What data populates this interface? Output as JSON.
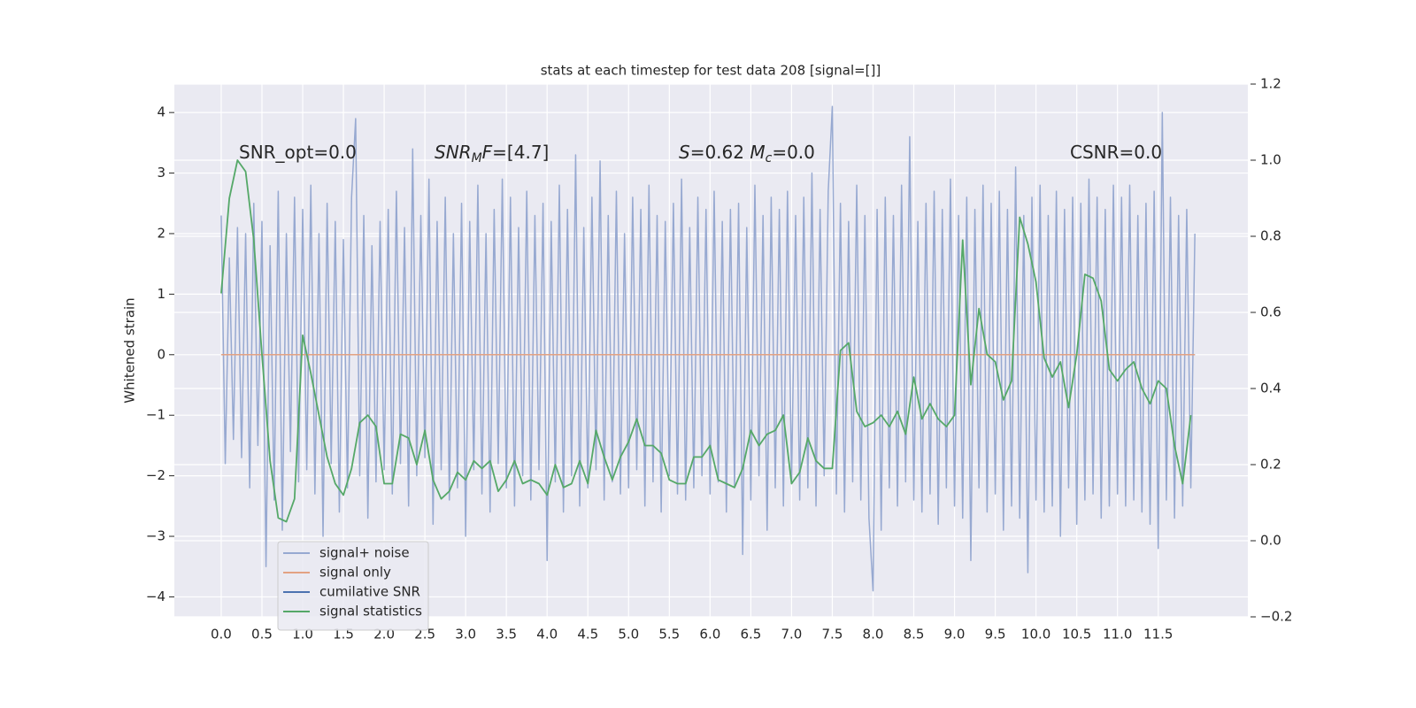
{
  "chart_data": {
    "type": "line",
    "title": "stats at each timestep for test data 208 [signal=[]]",
    "ylabel": "Whitened strain",
    "xlim": [
      -0.575,
      12.6
    ],
    "ylim": [
      -4.33,
      4.47
    ],
    "y2lim": [
      -0.2,
      1.2
    ],
    "xticks": [
      {
        "value": 0,
        "label": "0.0"
      },
      {
        "value": 0.5,
        "label": "0.5"
      },
      {
        "value": 1,
        "label": "1.0"
      },
      {
        "value": 1.5,
        "label": "1.5"
      },
      {
        "value": 2,
        "label": "2.0"
      },
      {
        "value": 2.5,
        "label": "2.5"
      },
      {
        "value": 3,
        "label": "3.0"
      },
      {
        "value": 3.5,
        "label": "3.5"
      },
      {
        "value": 4,
        "label": "4.0"
      },
      {
        "value": 4.5,
        "label": "4.5"
      },
      {
        "value": 5,
        "label": "5.0"
      },
      {
        "value": 5.5,
        "label": "5.5"
      },
      {
        "value": 6,
        "label": "6.0"
      },
      {
        "value": 6.5,
        "label": "6.5"
      },
      {
        "value": 7,
        "label": "7.0"
      },
      {
        "value": 7.5,
        "label": "7.5"
      },
      {
        "value": 8,
        "label": "8.0"
      },
      {
        "value": 8.5,
        "label": "8.5"
      },
      {
        "value": 9,
        "label": "9.0"
      },
      {
        "value": 9.5,
        "label": "9.5"
      },
      {
        "value": 10,
        "label": "10.0"
      },
      {
        "value": 10.5,
        "label": "10.5"
      },
      {
        "value": 11,
        "label": "11.0"
      },
      {
        "value": 11.5,
        "label": "11.5"
      }
    ],
    "yticks": [
      {
        "value": -4,
        "label": "−4"
      },
      {
        "value": -3,
        "label": "−3"
      },
      {
        "value": -2,
        "label": "−2"
      },
      {
        "value": -1,
        "label": "−1"
      },
      0,
      1,
      2,
      3,
      4
    ],
    "y2ticks": [
      {
        "value": -0.2,
        "label": "−0.2"
      },
      {
        "value": 0,
        "label": "0.0"
      },
      {
        "value": 0.2,
        "label": "0.2"
      },
      {
        "value": 0.4,
        "label": "0.4"
      },
      {
        "value": 0.6,
        "label": "0.6"
      },
      {
        "value": 0.8,
        "label": "0.8"
      },
      {
        "value": 1,
        "label": "1.0"
      },
      {
        "value": 1.2,
        "label": "1.2"
      }
    ],
    "grid": true,
    "legend": "lower left",
    "annotations": [
      {
        "parts": [
          {
            "text": "SNR_opt=0.0"
          }
        ]
      },
      {
        "parts": [
          {
            "text": "SNR",
            "italic": true
          },
          {
            "text": "M",
            "italic": true,
            "sub": true
          },
          {
            "text": "F=[4.7]",
            "italic_first": true
          }
        ]
      },
      {
        "parts": [
          {
            "text": "S",
            "italic": true
          },
          {
            "text": "=0.62   "
          },
          {
            "text": "M",
            "italic": true
          },
          {
            "text": "c",
            "italic": true,
            "sub": true
          },
          {
            "text": "=0.0"
          }
        ]
      },
      {
        "parts": [
          {
            "text": "CSNR=0.0"
          }
        ]
      }
    ],
    "series": [
      {
        "name": "signal+ noise",
        "color": "#97a9d1",
        "x": [
          0,
          0.05,
          0.1,
          0.15,
          0.2,
          0.25,
          0.3,
          0.35,
          0.4,
          0.45,
          0.5,
          0.55,
          0.6,
          0.65,
          0.7,
          0.75,
          0.8,
          0.85,
          0.9,
          0.95,
          1,
          1.05,
          1.1,
          1.15,
          1.2,
          1.25,
          1.3,
          1.35,
          1.4,
          1.45,
          1.5,
          1.55,
          1.6,
          1.65,
          1.7,
          1.75,
          1.8,
          1.85,
          1.9,
          1.95,
          2,
          2.05,
          2.1,
          2.15,
          2.2,
          2.25,
          2.3,
          2.35,
          2.4,
          2.45,
          2.5,
          2.55,
          2.6,
          2.65,
          2.7,
          2.75,
          2.8,
          2.85,
          2.9,
          2.95,
          3,
          3.05,
          3.1,
          3.15,
          3.2,
          3.25,
          3.3,
          3.35,
          3.4,
          3.45,
          3.5,
          3.55,
          3.6,
          3.65,
          3.7,
          3.75,
          3.8,
          3.85,
          3.9,
          3.95,
          4,
          4.05,
          4.1,
          4.15,
          4.2,
          4.25,
          4.3,
          4.35,
          4.4,
          4.45,
          4.5,
          4.55,
          4.6,
          4.65,
          4.7,
          4.75,
          4.8,
          4.85,
          4.9,
          4.95,
          5,
          5.05,
          5.1,
          5.15,
          5.2,
          5.25,
          5.3,
          5.35,
          5.4,
          5.45,
          5.5,
          5.55,
          5.6,
          5.65,
          5.7,
          5.75,
          5.8,
          5.85,
          5.9,
          5.95,
          6,
          6.05,
          6.1,
          6.15,
          6.2,
          6.25,
          6.3,
          6.35,
          6.4,
          6.45,
          6.5,
          6.55,
          6.6,
          6.65,
          6.7,
          6.75,
          6.8,
          6.85,
          6.9,
          6.95,
          7,
          7.05,
          7.1,
          7.15,
          7.2,
          7.25,
          7.3,
          7.35,
          7.4,
          7.45,
          7.5,
          7.55,
          7.6,
          7.65,
          7.7,
          7.75,
          7.8,
          7.85,
          7.9,
          7.95,
          8,
          8.05,
          8.1,
          8.15,
          8.2,
          8.25,
          8.3,
          8.35,
          8.4,
          8.45,
          8.5,
          8.55,
          8.6,
          8.65,
          8.7,
          8.75,
          8.8,
          8.85,
          8.9,
          8.95,
          9,
          9.05,
          9.1,
          9.15,
          9.2,
          9.25,
          9.3,
          9.35,
          9.4,
          9.45,
          9.5,
          9.55,
          9.6,
          9.65,
          9.7,
          9.75,
          9.8,
          9.85,
          9.9,
          9.95,
          10,
          10.05,
          10.1,
          10.15,
          10.2,
          10.25,
          10.3,
          10.35,
          10.4,
          10.45,
          10.5,
          10.55,
          10.6,
          10.65,
          10.7,
          10.75,
          10.8,
          10.85,
          10.9,
          10.95,
          11,
          11.05,
          11.1,
          11.15,
          11.2,
          11.25,
          11.3,
          11.35,
          11.4,
          11.45,
          11.5,
          11.55,
          11.6,
          11.65,
          11.7,
          11.75,
          11.8,
          11.85,
          11.9,
          11.95
        ],
        "values": [
          2.3,
          -1.8,
          1.6,
          -1.4,
          2.1,
          -1.7,
          2.0,
          -2.2,
          2.5,
          -1.5,
          2.2,
          -3.5,
          1.8,
          -2.4,
          2.7,
          -2.9,
          2.0,
          -1.6,
          2.6,
          -2.1,
          2.4,
          -1.9,
          2.8,
          -2.3,
          2.0,
          -3.0,
          2.5,
          -1.8,
          2.2,
          -2.6,
          1.9,
          -2.2,
          2.6,
          3.9,
          -2.0,
          2.3,
          -2.7,
          1.8,
          -2.1,
          2.2,
          -1.9,
          2.4,
          -2.3,
          2.7,
          -1.8,
          2.1,
          -2.5,
          3.4,
          -2.0,
          2.3,
          -1.7,
          2.9,
          -2.8,
          2.2,
          -1.9,
          2.6,
          -2.4,
          2.0,
          -2.2,
          2.5,
          -3.0,
          2.2,
          -1.9,
          2.8,
          -2.3,
          2.0,
          -2.6,
          2.4,
          -1.8,
          2.9,
          -2.2,
          2.6,
          -2.5,
          2.1,
          -2.0,
          2.7,
          -2.4,
          2.3,
          -1.9,
          2.5,
          -3.4,
          2.2,
          -2.1,
          2.8,
          -2.6,
          2.4,
          -2.0,
          3.3,
          -2.5,
          2.1,
          -2.2,
          2.6,
          -1.9,
          3.2,
          -2.4,
          2.3,
          -2.1,
          2.7,
          -2.3,
          2.0,
          -2.2,
          2.6,
          -1.9,
          2.4,
          -2.5,
          2.8,
          -2.1,
          2.3,
          -2.6,
          2.2,
          -2.0,
          2.5,
          -2.3,
          2.9,
          -2.4,
          2.1,
          -2.2,
          2.6,
          -2.0,
          2.4,
          -2.3,
          2.7,
          -2.1,
          2.2,
          -2.6,
          2.4,
          -2.2,
          2.5,
          -3.3,
          2.1,
          -2.4,
          2.8,
          -2.0,
          2.3,
          -2.9,
          2.6,
          -2.2,
          2.4,
          -2.5,
          2.7,
          -2.1,
          2.3,
          -2.4,
          2.6,
          -2.2,
          3.0,
          -2.5,
          2.4,
          -2.0,
          2.7,
          4.1,
          -2.3,
          2.5,
          -2.6,
          2.2,
          -2.1,
          2.8,
          -2.4,
          2.3,
          -2.7,
          -3.9,
          2.4,
          -2.9,
          2.6,
          -2.2,
          2.3,
          -2.5,
          2.8,
          -2.1,
          3.6,
          -2.4,
          2.2,
          -2.6,
          2.5,
          -2.3,
          2.7,
          -2.8,
          2.4,
          -2.2,
          2.9,
          -2.5,
          2.3,
          -2.7,
          2.6,
          -3.4,
          2.4,
          -2.2,
          2.8,
          -2.6,
          2.5,
          -2.3,
          2.7,
          -2.9,
          2.4,
          -2.5,
          3.1,
          -2.7,
          2.3,
          -3.6,
          2.6,
          -2.4,
          2.8,
          -2.6,
          2.3,
          -2.5,
          2.7,
          -3.0,
          2.4,
          -2.2,
          2.6,
          -2.8,
          2.5,
          -2.4,
          2.9,
          -2.3,
          2.6,
          -2.7,
          2.4,
          -2.5,
          2.8,
          -2.3,
          2.6,
          -2.5,
          2.8,
          -2.4,
          2.3,
          -2.6,
          2.5,
          -2.8,
          2.7,
          -3.2,
          4.0,
          -2.4,
          2.6,
          -2.7,
          2.3,
          -2.5,
          2.4,
          -2.2,
          2.0
        ]
      },
      {
        "name": "signal only",
        "color": "#e3a283",
        "x": [
          0,
          11.95
        ],
        "values": [
          0,
          0
        ]
      },
      {
        "name": "cumilative SNR",
        "color": "#4c72b0",
        "x": [
          0,
          11.95
        ],
        "values": [
          0,
          0
        ]
      },
      {
        "name": "signal statistics",
        "color": "#55a868",
        "axis": "y2",
        "x": [
          0,
          0.1,
          0.2,
          0.3,
          0.4,
          0.5,
          0.6,
          0.7,
          0.8,
          0.9,
          1,
          1.1,
          1.2,
          1.3,
          1.4,
          1.5,
          1.6,
          1.7,
          1.8,
          1.9,
          2,
          2.1,
          2.2,
          2.3,
          2.4,
          2.5,
          2.6,
          2.7,
          2.8,
          2.9,
          3,
          3.1,
          3.2,
          3.3,
          3.4,
          3.5,
          3.6,
          3.7,
          3.8,
          3.9,
          4,
          4.1,
          4.2,
          4.3,
          4.4,
          4.5,
          4.6,
          4.7,
          4.8,
          4.9,
          5,
          5.1,
          5.2,
          5.3,
          5.4,
          5.5,
          5.6,
          5.7,
          5.8,
          5.9,
          6,
          6.1,
          6.2,
          6.3,
          6.4,
          6.5,
          6.6,
          6.7,
          6.8,
          6.9,
          7,
          7.1,
          7.2,
          7.3,
          7.4,
          7.5,
          7.6,
          7.7,
          7.8,
          7.9,
          8,
          8.1,
          8.2,
          8.3,
          8.4,
          8.5,
          8.6,
          8.7,
          8.8,
          8.9,
          9,
          9.1,
          9.2,
          9.3,
          9.4,
          9.5,
          9.6,
          9.7,
          9.8,
          9.9,
          10,
          10.1,
          10.2,
          10.3,
          10.4,
          10.5,
          10.6,
          10.7,
          10.8,
          10.9,
          11,
          11.1,
          11.2,
          11.3,
          11.4,
          11.5,
          11.6,
          11.7,
          11.8,
          11.9
        ],
        "values": [
          0.65,
          0.9,
          1.0,
          0.97,
          0.79,
          0.49,
          0.21,
          0.06,
          0.05,
          0.11,
          0.54,
          0.44,
          0.33,
          0.22,
          0.15,
          0.12,
          0.19,
          0.31,
          0.33,
          0.3,
          0.15,
          0.15,
          0.28,
          0.27,
          0.2,
          0.29,
          0.16,
          0.11,
          0.13,
          0.18,
          0.16,
          0.21,
          0.19,
          0.21,
          0.13,
          0.16,
          0.21,
          0.15,
          0.16,
          0.15,
          0.12,
          0.2,
          0.14,
          0.15,
          0.21,
          0.15,
          0.29,
          0.22,
          0.16,
          0.22,
          0.26,
          0.32,
          0.25,
          0.25,
          0.23,
          0.16,
          0.15,
          0.15,
          0.22,
          0.22,
          0.25,
          0.16,
          0.15,
          0.14,
          0.19,
          0.29,
          0.25,
          0.28,
          0.29,
          0.33,
          0.15,
          0.18,
          0.27,
          0.21,
          0.19,
          0.19,
          0.5,
          0.52,
          0.34,
          0.3,
          0.31,
          0.33,
          0.3,
          0.34,
          0.28,
          0.43,
          0.32,
          0.36,
          0.32,
          0.3,
          0.33,
          0.79,
          0.41,
          0.61,
          0.49,
          0.47,
          0.37,
          0.42,
          0.85,
          0.78,
          0.68,
          0.48,
          0.43,
          0.47,
          0.35,
          0.49,
          0.7,
          0.69,
          0.63,
          0.45,
          0.42,
          0.45,
          0.47,
          0.4,
          0.36,
          0.42,
          0.4,
          0.25,
          0.15,
          0.33
        ]
      }
    ]
  }
}
